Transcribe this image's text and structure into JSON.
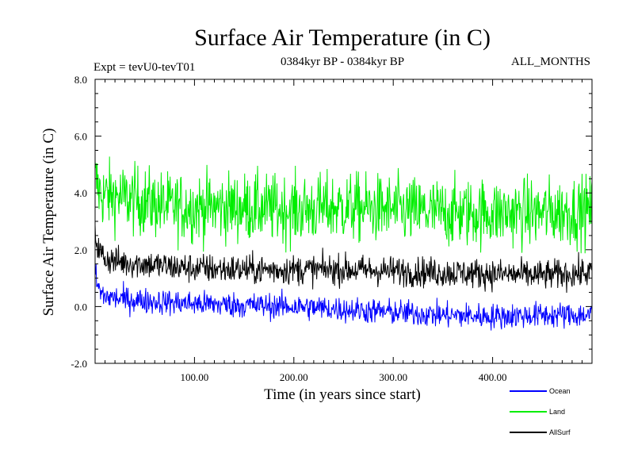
{
  "chart_data": {
    "type": "line",
    "title": "Surface Air Temperature (in C)",
    "subtitle_left": "Expt = tevU0-tevT01",
    "subtitle_center": "0384kyr BP - 0384kyr BP",
    "subtitle_right": "ALL_MONTHS",
    "xlabel": "Time (in years since start)",
    "ylabel": "Surface Air Temperature (in C)",
    "xlim": [
      0,
      500
    ],
    "ylim": [
      -2,
      8
    ],
    "x_ticks": [
      {
        "value": 100,
        "label": "100.00"
      },
      {
        "value": 200,
        "label": "200.00"
      },
      {
        "value": 300,
        "label": "300.00"
      },
      {
        "value": 400,
        "label": "400.00"
      }
    ],
    "y_ticks": [
      {
        "value": -2,
        "label": "-2.0"
      },
      {
        "value": 0,
        "label": "0.0"
      },
      {
        "value": 2,
        "label": "2.0"
      },
      {
        "value": 4,
        "label": "4.0"
      },
      {
        "value": 6,
        "label": "6.0"
      },
      {
        "value": 8,
        "label": "8.0"
      }
    ],
    "legend_position": "bottom-right outside",
    "series": [
      {
        "name": "Land",
        "color": "#00ee00",
        "x": [
          0,
          2,
          5,
          10,
          20,
          30,
          50,
          75,
          100,
          150,
          200,
          250,
          300,
          350,
          400,
          450,
          500
        ],
        "y": [
          4.5,
          4.3,
          4.0,
          3.9,
          3.9,
          3.8,
          3.7,
          3.5,
          3.5,
          3.5,
          3.4,
          3.5,
          3.4,
          3.3,
          3.3,
          3.3,
          3.4
        ],
        "noise": 0.8
      },
      {
        "name": "AllSurf",
        "color": "#000000",
        "x": [
          0,
          2,
          5,
          10,
          20,
          30,
          50,
          75,
          100,
          150,
          200,
          250,
          300,
          350,
          400,
          450,
          500
        ],
        "y": [
          2.7,
          2.2,
          1.9,
          1.7,
          1.6,
          1.55,
          1.5,
          1.4,
          1.35,
          1.3,
          1.3,
          1.3,
          1.25,
          1.2,
          1.15,
          1.1,
          1.2
        ],
        "noise": 0.35
      },
      {
        "name": "Ocean",
        "color": "#0000ff",
        "x": [
          0,
          2,
          5,
          10,
          20,
          30,
          50,
          75,
          100,
          150,
          200,
          250,
          300,
          350,
          400,
          450,
          500
        ],
        "y": [
          1.2,
          0.8,
          0.5,
          0.35,
          0.3,
          0.25,
          0.2,
          0.15,
          0.1,
          0.05,
          0.0,
          -0.1,
          -0.2,
          -0.3,
          -0.35,
          -0.3,
          -0.3
        ],
        "noise": 0.3
      }
    ],
    "legend": [
      {
        "name": "Ocean",
        "color": "#0000ff"
      },
      {
        "name": "Land",
        "color": "#00ee00"
      },
      {
        "name": "AllSurf",
        "color": "#000000"
      }
    ]
  }
}
